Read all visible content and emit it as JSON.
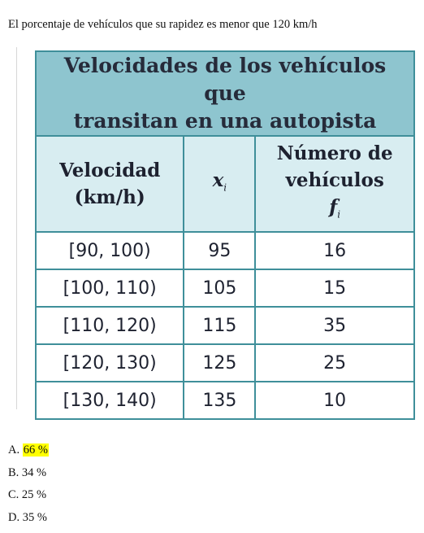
{
  "question": "El porcentaje de vehículos que su rapidez es menor que 120 km/h",
  "table": {
    "title_line1": "Velocidades de los vehículos que",
    "title_line2": "transitan en una autopista",
    "headers": {
      "velocidad_line1": "Velocidad",
      "velocidad_line2": "(km/h)",
      "x_var": "x",
      "x_sub": "i",
      "numero_line1": "Número de",
      "numero_line2": "vehículos",
      "f_var": "f",
      "f_sub": "i"
    },
    "rows": [
      {
        "velocidad": "[90, 100)",
        "x": "95",
        "f": "16"
      },
      {
        "velocidad": "[100, 110)",
        "x": "105",
        "f": "15"
      },
      {
        "velocidad": "[110, 120)",
        "x": "115",
        "f": "35"
      },
      {
        "velocidad": "[120, 130)",
        "x": "125",
        "f": "25"
      },
      {
        "velocidad": "[130, 140)",
        "x": "135",
        "f": "10"
      }
    ]
  },
  "options": [
    {
      "letter": "A.",
      "text": "66 %",
      "highlighted": true
    },
    {
      "letter": "B.",
      "text": "34 %",
      "highlighted": false
    },
    {
      "letter": "C.",
      "text": "25 %",
      "highlighted": false
    },
    {
      "letter": "D.",
      "text": "35 %",
      "highlighted": false
    }
  ],
  "colors": {
    "title_bg": "#8ec5cf",
    "header_bg": "#d8edf1",
    "border": "#3f8f9a",
    "highlight": "#ffff00"
  }
}
